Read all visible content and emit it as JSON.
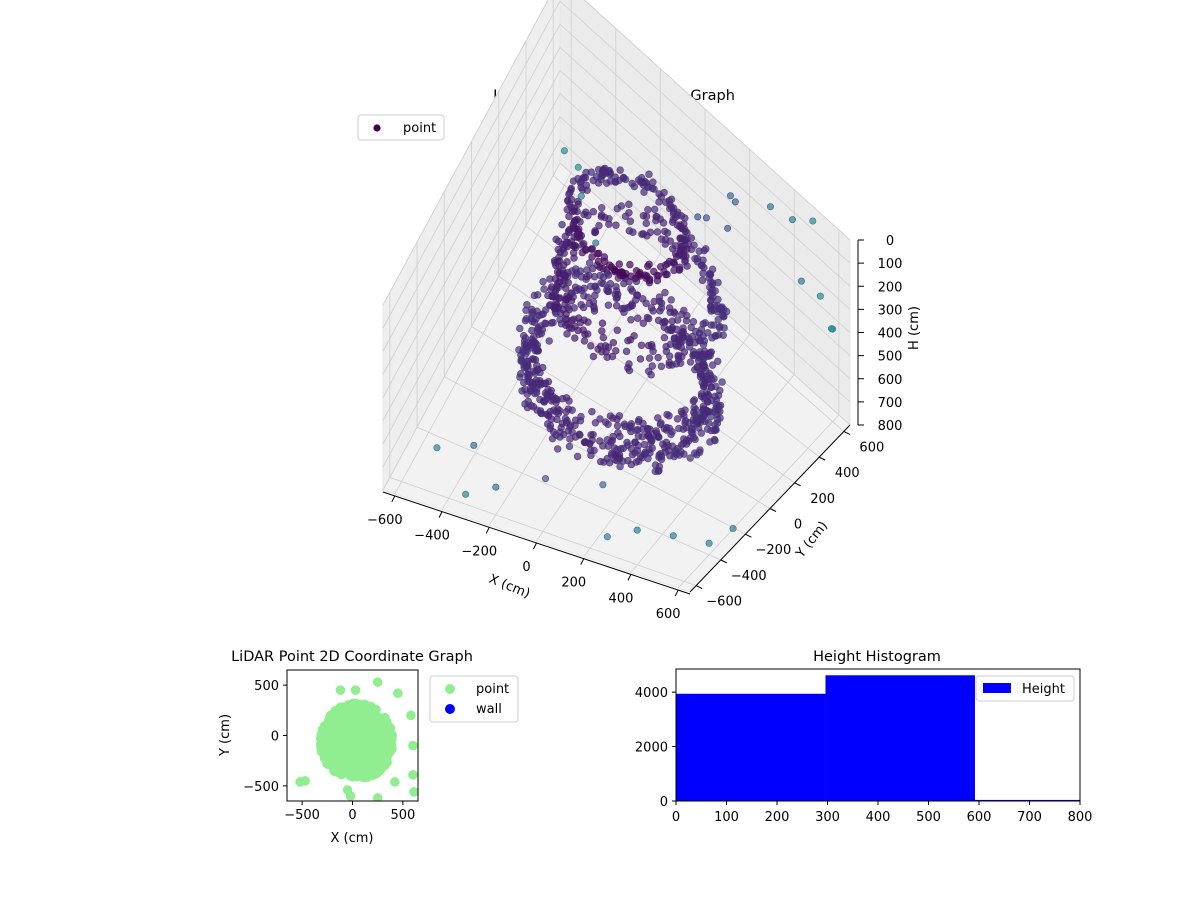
{
  "chart_data": [
    {
      "type": "scatter3d",
      "title": "LiDAR Point 3D Coordinate Graph",
      "xlabel": "X (cm)",
      "ylabel": "Y (cm)",
      "zlabel": "H (cm)",
      "xlim": [
        -650,
        650
      ],
      "ylim": [
        -650,
        650
      ],
      "zlim": [
        800,
        0
      ],
      "xticks": [
        -600,
        -400,
        -200,
        0,
        200,
        400,
        600
      ],
      "yticks": [
        -600,
        -400,
        -200,
        0,
        200,
        400,
        600
      ],
      "zticks": [
        0,
        100,
        200,
        300,
        400,
        500,
        600,
        700,
        800
      ],
      "xtick_labels": [
        "−600",
        "−400",
        "−200",
        "0",
        "200",
        "400",
        "600"
      ],
      "ytick_labels": [
        "−600",
        "−400",
        "−200",
        "0",
        "200",
        "400",
        "600"
      ],
      "ztick_labels": [
        "0",
        "100",
        "200",
        "300",
        "400",
        "500",
        "600",
        "700",
        "800"
      ],
      "legend": {
        "entries": [
          "point"
        ],
        "placement": "upper-left",
        "color": "#440154"
      },
      "grid": true,
      "colormap": "viridis",
      "series": [
        {
          "name": "point",
          "description_rings": [
            {
              "center": [
                0,
                0
              ],
              "h_min": 500,
              "h_max": 700,
              "rx": 380,
              "ry": 330,
              "count": 650
            },
            {
              "center": [
                50,
                50
              ],
              "h_min": 200,
              "h_max": 320,
              "rx": 330,
              "ry": 300,
              "count": 260
            },
            {
              "center": [
                -50,
                150
              ],
              "h_min": 100,
              "h_max": 160,
              "rx": 240,
              "ry": 200,
              "count": 200
            }
          ],
          "outliers": [
            [
              350,
              550,
              50
            ],
            [
              420,
              600,
              80
            ],
            [
              500,
              620,
              30
            ],
            [
              600,
              500,
              200
            ],
            [
              560,
              420,
              120
            ],
            [
              300,
              300,
              10
            ],
            [
              250,
              450,
              40
            ],
            [
              200,
              500,
              90
            ],
            [
              150,
              400,
              150
            ],
            [
              100,
              420,
              200
            ],
            [
              -600,
              600,
              650
            ],
            [
              -550,
              620,
              700
            ],
            [
              -500,
              560,
              720
            ],
            [
              -400,
              500,
              780
            ],
            [
              -450,
              -600,
              600
            ],
            [
              -350,
              -500,
              650
            ],
            [
              -300,
              -650,
              700
            ],
            [
              -200,
              -600,
              680
            ],
            [
              400,
              -600,
              650
            ],
            [
              500,
              -500,
              700
            ],
            [
              600,
              -400,
              750
            ],
            [
              650,
              -300,
              720
            ],
            [
              300,
              -650,
              680
            ],
            [
              200,
              -500,
              600
            ],
            [
              -100,
              -400,
              780
            ],
            [
              600,
              600,
              400
            ],
            [
              650,
              500,
              300
            ]
          ]
        }
      ]
    },
    {
      "type": "scatter",
      "title": "LiDAR Point 2D Coordinate Graph",
      "xlabel": "X (cm)",
      "ylabel": "Y (cm)",
      "xlim": [
        -650,
        650
      ],
      "ylim": [
        -650,
        650
      ],
      "xticks": [
        -500,
        0,
        500
      ],
      "yticks": [
        -500,
        0,
        500
      ],
      "xtick_labels": [
        "−500",
        "0",
        "500"
      ],
      "ytick_labels": [
        "−500",
        "0",
        "500"
      ],
      "legend": {
        "entries": [
          "point",
          "wall"
        ],
        "placement": "outside-right"
      },
      "series": [
        {
          "name": "point",
          "color": "#90ee90",
          "cloud": {
            "center": [
              0,
              0
            ],
            "rx": 360,
            "ry": 380,
            "count": 700
          },
          "outliers": [
            [
              -520,
              -460
            ],
            [
              -470,
              -450
            ],
            [
              -120,
              450
            ],
            [
              30,
              450
            ],
            [
              250,
              530
            ],
            [
              450,
              420
            ],
            [
              580,
              200
            ],
            [
              600,
              -390
            ],
            [
              610,
              -560
            ],
            [
              420,
              -460
            ],
            [
              -50,
              -540
            ],
            [
              250,
              -620
            ],
            [
              -20,
              -600
            ],
            [
              600,
              -100
            ]
          ]
        },
        {
          "name": "wall",
          "color": "#0000ff",
          "points": []
        }
      ]
    },
    {
      "type": "histogram",
      "title": "Height Histogram",
      "xlabel": "",
      "ylabel": "",
      "xlim": [
        0,
        800
      ],
      "ylim": [
        0,
        4850
      ],
      "xticks": [
        0,
        100,
        200,
        300,
        400,
        500,
        600,
        700,
        800
      ],
      "yticks": [
        0,
        2000,
        4000
      ],
      "xtick_labels": [
        "0",
        "100",
        "200",
        "300",
        "400",
        "500",
        "600",
        "700",
        "800"
      ],
      "ytick_labels": [
        "0",
        "2000",
        "4000"
      ],
      "legend": {
        "entries": [
          "Height"
        ],
        "placement": "upper-right"
      },
      "color": "#0000ff",
      "bins": [
        {
          "start": 0,
          "end": 296,
          "count": 3940
        },
        {
          "start": 296,
          "end": 592,
          "count": 4620
        },
        {
          "start": 592,
          "end": 800,
          "count": 40
        }
      ]
    }
  ]
}
